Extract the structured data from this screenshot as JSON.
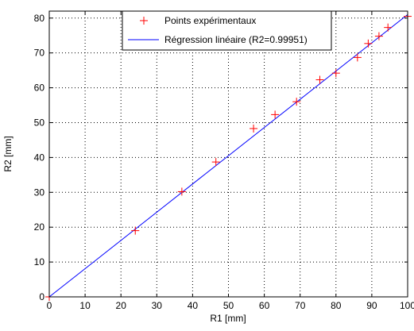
{
  "chart_data": {
    "type": "scatter",
    "xlabel": "R1 [mm]",
    "ylabel": "R2 [mm]",
    "xlim": [
      0,
      100
    ],
    "ylim": [
      0,
      82
    ],
    "xticks": [
      0,
      10,
      20,
      30,
      40,
      50,
      60,
      70,
      80,
      90,
      100
    ],
    "yticks": [
      0,
      10,
      20,
      30,
      40,
      50,
      60,
      70,
      80
    ],
    "grid": true,
    "legend_position": "top",
    "series": [
      {
        "name": "Points expérimentaux",
        "marker": "+",
        "color": "#ff0000",
        "x": [
          0,
          24,
          37,
          46.5,
          57,
          63,
          69,
          75.5,
          80,
          86,
          89,
          92,
          94.5,
          100
        ],
        "y": [
          0,
          19,
          30.2,
          38.7,
          48.3,
          52.3,
          56,
          62.3,
          64.2,
          68.7,
          72.7,
          74.8,
          77.3,
          80.5
        ]
      },
      {
        "name": "Régression linéaire (R2=0.99951)",
        "type": "line",
        "color": "#0000ff",
        "x": [
          0,
          100
        ],
        "y": [
          0,
          81
        ]
      }
    ]
  }
}
